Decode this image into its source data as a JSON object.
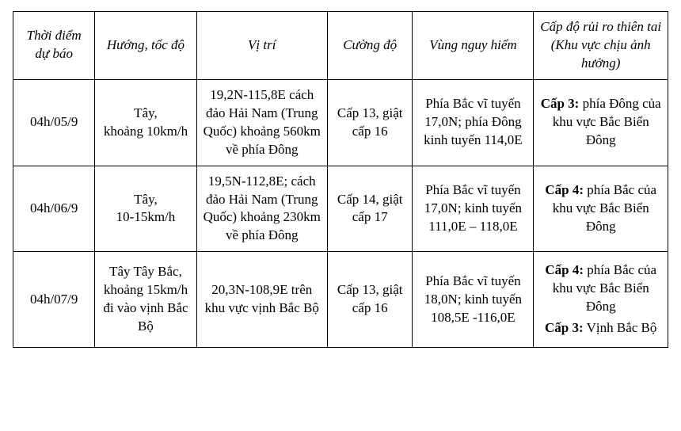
{
  "table": {
    "type": "table",
    "background_color": "#ffffff",
    "border_color": "#000000",
    "font_family": "Times New Roman",
    "base_fontsize_pt": 13,
    "header_style": "italic",
    "column_widths_pct": [
      12.5,
      15.5,
      20,
      13,
      18.5,
      20.5
    ],
    "columns": [
      "Thời điểm dự báo",
      "Hướng, tốc độ",
      "Vị trí",
      "Cường độ",
      "Vùng nguy hiểm",
      "Cấp độ rủi ro thiên tai (Khu vực chịu ảnh hưởng)"
    ],
    "rows": [
      {
        "time": "04h/05/9",
        "direction_speed": "Tây,\nkhoảng 10km/h",
        "position": "19,2N-115,8E cách đảo Hải Nam (Trung Quốc) khoảng 560km về phía Đông",
        "intensity": "Cấp 13, giật cấp 16",
        "danger_zone": "Phía Bắc vĩ tuyến 17,0N; phía Đông kinh tuyến 114,0E",
        "risk": [
          {
            "level": "Cấp 3:",
            "area": " phía Đông của khu vực Bắc Biển Đông"
          }
        ]
      },
      {
        "time": "04h/06/9",
        "direction_speed": "Tây,\n10-15km/h",
        "position": "19,5N-112,8E; cách đảo Hải Nam (Trung Quốc) khoảng 230km về phía Đông",
        "intensity": "Cấp 14, giật cấp 17",
        "danger_zone": "Phía Bắc vĩ tuyến 17,0N; kinh tuyến 111,0E – 118,0E",
        "risk": [
          {
            "level": "Cấp 4:",
            "area": " phía Bắc của khu vực Bắc Biển Đông"
          }
        ]
      },
      {
        "time": "04h/07/9",
        "direction_speed": "Tây Tây Bắc, khoảng 15km/h đi vào vịnh Bắc Bộ",
        "position": "20,3N-108,9E trên khu vực vịnh Bắc Bộ",
        "intensity": "Cấp 13, giật cấp 16",
        "danger_zone": "Phía Bắc vĩ tuyến 18,0N; kinh tuyến 108,5E -116,0E",
        "risk": [
          {
            "level": "Cấp 4:",
            "area": " phía Bắc của khu vực Bắc Biển Đông"
          },
          {
            "level": "Cấp 3:",
            "area": " Vịnh Bắc Bộ"
          }
        ]
      }
    ]
  }
}
